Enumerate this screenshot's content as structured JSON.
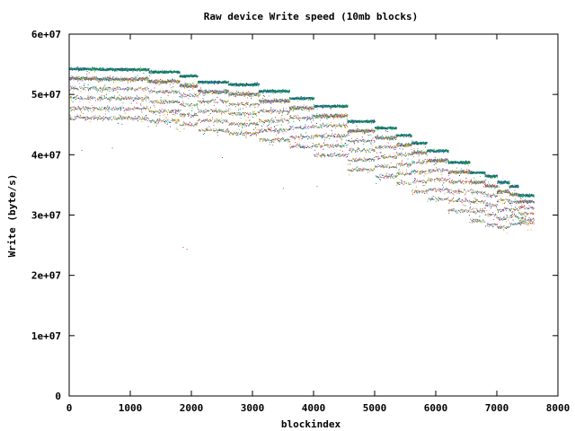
{
  "chart_data": {
    "type": "scatter",
    "title": "Raw device Write speed (10mb blocks)",
    "xlabel": "blockindex",
    "ylabel": "Write (byte/s)",
    "xlim": [
      0,
      8000
    ],
    "ylim": [
      0,
      60000000
    ],
    "x_ticks": [
      0,
      1000,
      2000,
      3000,
      4000,
      5000,
      6000,
      7000,
      8000
    ],
    "x_tick_labels": [
      "0",
      "1000",
      "2000",
      "3000",
      "4000",
      "5000",
      "6000",
      "7000",
      "8000"
    ],
    "y_ticks": [
      0,
      10000000,
      20000000,
      30000000,
      40000000,
      50000000,
      60000000
    ],
    "y_tick_labels": [
      "0",
      "1e+07",
      "2e+07",
      "3e+07",
      "4e+07",
      "5e+07",
      "6e+07"
    ],
    "grid": false,
    "legend": "none",
    "point_colors": [
      "#0a8a2a",
      "#1a9a8a",
      "#2e3a9e",
      "#c8b400",
      "#e03030",
      "#b83ab8",
      "#5aa0c8",
      "#e08a20"
    ],
    "segments": [
      {
        "x_start": 0,
        "x_end": 450,
        "levels": [
          54300000,
          52700000,
          51100000,
          49500000,
          47800000,
          46200000
        ]
      },
      {
        "x_start": 450,
        "x_end": 1300,
        "levels": [
          54200000,
          52600000,
          51000000,
          49400000,
          47700000,
          46100000
        ]
      },
      {
        "x_start": 1300,
        "x_end": 1800,
        "levels": [
          53800000,
          52200000,
          50500000,
          48800000,
          47300000,
          45700000
        ]
      },
      {
        "x_start": 1800,
        "x_end": 2100,
        "levels": [
          53100000,
          51500000,
          49900000,
          48300000,
          46700000,
          45100000
        ]
      },
      {
        "x_start": 2100,
        "x_end": 2600,
        "levels": [
          52100000,
          50500000,
          48900000,
          47300000,
          45700000,
          44100000
        ]
      },
      {
        "x_start": 2600,
        "x_end": 3100,
        "levels": [
          51700000,
          50100000,
          48500000,
          46900000,
          45200000,
          43600000
        ]
      },
      {
        "x_start": 3100,
        "x_end": 3600,
        "levels": [
          50600000,
          49000000,
          47300000,
          45700000,
          44100000,
          42500000
        ]
      },
      {
        "x_start": 3600,
        "x_end": 4000,
        "levels": [
          49400000,
          47800000,
          46200000,
          44600000,
          43000000,
          41400000
        ]
      },
      {
        "x_start": 4000,
        "x_end": 4550,
        "levels": [
          48100000,
          46500000,
          44900000,
          43200000,
          41600000,
          40000000
        ]
      },
      {
        "x_start": 4550,
        "x_end": 5000,
        "levels": [
          45600000,
          44000000,
          42400000,
          40800000,
          39200000,
          37600000
        ]
      },
      {
        "x_start": 5000,
        "x_end": 5350,
        "levels": [
          44500000,
          42900000,
          41300000,
          39700000,
          38100000,
          36500000
        ]
      },
      {
        "x_start": 5350,
        "x_end": 5600,
        "levels": [
          43300000,
          41700000,
          40100000,
          38500000,
          36900000,
          35300000
        ]
      },
      {
        "x_start": 5600,
        "x_end": 5850,
        "levels": [
          42000000,
          40400000,
          38800000,
          37200000,
          35600000,
          34000000
        ]
      },
      {
        "x_start": 5850,
        "x_end": 6200,
        "levels": [
          40700000,
          39100000,
          37500000,
          35900000,
          34300000,
          32700000
        ]
      },
      {
        "x_start": 6200,
        "x_end": 6550,
        "levels": [
          38800000,
          37200000,
          35600000,
          34000000,
          32400000,
          30800000
        ]
      },
      {
        "x_start": 6550,
        "x_end": 6800,
        "levels": [
          37100000,
          35500000,
          33900000,
          32300000,
          30700000,
          29100000
        ]
      },
      {
        "x_start": 6800,
        "x_end": 7000,
        "levels": [
          36500000,
          34900000,
          33300000,
          31700000,
          30100000,
          28500000
        ]
      },
      {
        "x_start": 7000,
        "x_end": 7200,
        "levels": [
          35500000,
          34000000,
          32500000,
          31000000,
          29500000,
          28000000
        ]
      },
      {
        "x_start": 7200,
        "x_end": 7350,
        "levels": [
          34800000,
          33500000,
          32200000,
          31000000,
          29800000,
          28600000
        ]
      },
      {
        "x_start": 7350,
        "x_end": 7600,
        "levels": [
          33300000,
          32300000,
          31300000,
          30300000,
          29300000,
          28800000
        ]
      }
    ],
    "outliers": [
      {
        "x": 1860,
        "y": 24700000
      },
      {
        "x": 1920,
        "y": 24400000
      },
      {
        "x": 3500,
        "y": 34500000
      },
      {
        "x": 4050,
        "y": 34800000
      },
      {
        "x": 200,
        "y": 40800000
      },
      {
        "x": 700,
        "y": 41200000
      },
      {
        "x": 2500,
        "y": 39600000
      }
    ]
  }
}
